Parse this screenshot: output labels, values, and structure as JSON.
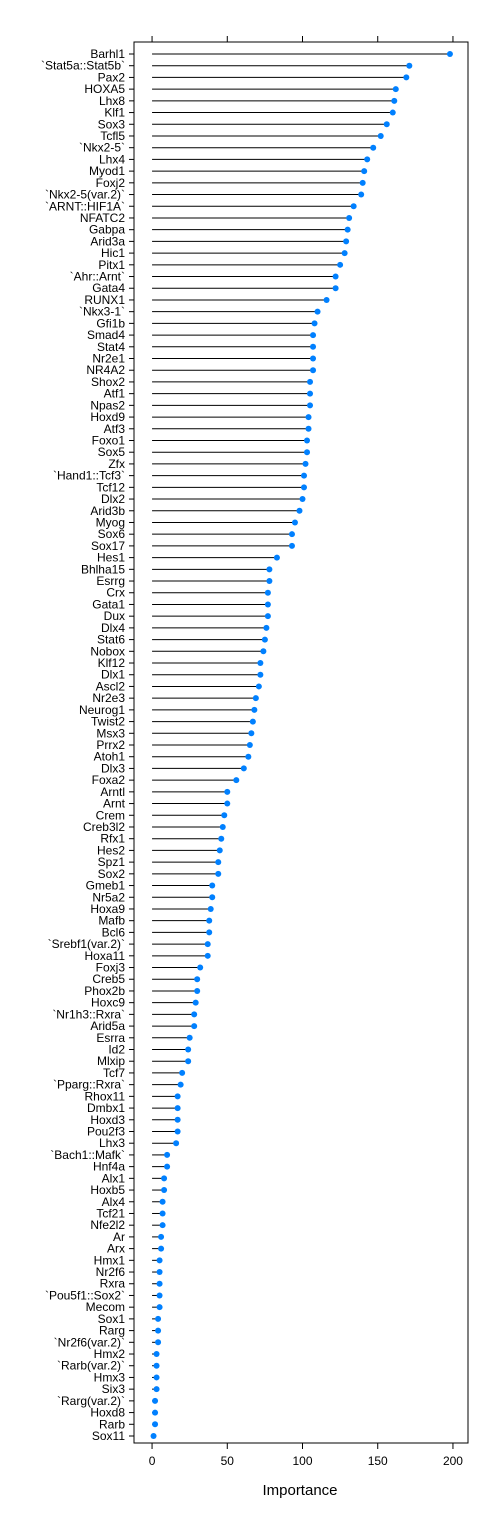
{
  "chart_data": {
    "type": "dot",
    "xlabel": "Importance",
    "xlim": [
      -12,
      210
    ],
    "xticks": [
      0,
      50,
      100,
      150,
      200
    ],
    "xtick_labels": [
      "0",
      "50",
      "100",
      "150",
      "200"
    ],
    "point_color": "#0080ff",
    "line_color": "#000000",
    "categories": [
      "Barhl1",
      "`Stat5a::Stat5b`",
      "Pax2",
      "HOXA5",
      "Lhx8",
      "Klf1",
      "Sox3",
      "Tcfl5",
      "`Nkx2-5`",
      "Lhx4",
      "Myod1",
      "Foxj2",
      "`Nkx2-5(var.2)`",
      "`ARNT::HIF1A`",
      "NFATC2",
      "Gabpa",
      "Arid3a",
      "Hic1",
      "Pitx1",
      "`Ahr::Arnt`",
      "Gata4",
      "RUNX1",
      "`Nkx3-1`",
      "Gfi1b",
      "Smad4",
      "Stat4",
      "Nr2e1",
      "NR4A2",
      "Shox2",
      "Atf1",
      "Npas2",
      "Hoxd9",
      "Atf3",
      "Foxo1",
      "Sox5",
      "Zfx",
      "`Hand1::Tcf3`",
      "Tcf12",
      "Dlx2",
      "Arid3b",
      "Myog",
      "Sox6",
      "Sox17",
      "Hes1",
      "Bhlha15",
      "Esrrg",
      "Crx",
      "Gata1",
      "Dux",
      "Dlx4",
      "Stat6",
      "Nobox",
      "Klf12",
      "Dlx1",
      "Ascl2",
      "Nr2e3",
      "Neurog1",
      "Twist2",
      "Msx3",
      "Prrx2",
      "Atoh1",
      "Dlx3",
      "Foxa2",
      "Arntl",
      "Arnt",
      "Crem",
      "Creb3l2",
      "Rfx1",
      "Hes2",
      "Spz1",
      "Sox2",
      "Gmeb1",
      "Nr5a2",
      "Hoxa9",
      "Mafb",
      "Bcl6",
      "`Srebf1(var.2)`",
      "Hoxa11",
      "Foxj3",
      "Creb5",
      "Phox2b",
      "Hoxc9",
      "`Nr1h3::Rxra`",
      "Arid5a",
      "Esrra",
      "Id2",
      "Mlxip",
      "Tcf7",
      "`Pparg::Rxra`",
      "Rhox11",
      "Dmbx1",
      "Hoxd3",
      "Pou2f3",
      "Lhx3",
      "`Bach1::Mafk`",
      "Hnf4a",
      "Alx1",
      "Hoxb5",
      "Alx4",
      "Tcf21",
      "Nfe2l2",
      "Ar",
      "Arx",
      "Hmx1",
      "Nr2f6",
      "Rxra",
      "`Pou5f1::Sox2`",
      "Mecom",
      "Sox1",
      "Rarg",
      "`Nr2f6(var.2)`",
      "Hmx2",
      "`Rarb(var.2)`",
      "Hmx3",
      "Six3",
      "`Rarg(var.2)`",
      "Hoxd8",
      "Rarb",
      "Sox11"
    ],
    "values": [
      198,
      171,
      169,
      162,
      161,
      160,
      156,
      152,
      147,
      143,
      141,
      140,
      139,
      134,
      131,
      130,
      129,
      128,
      125,
      122,
      122,
      116,
      110,
      108,
      107,
      107,
      107,
      107,
      105,
      105,
      105,
      104,
      104,
      103,
      103,
      102,
      101,
      101,
      100,
      98,
      95,
      93,
      93,
      83,
      78,
      78,
      77,
      77,
      77,
      76,
      75,
      74,
      72,
      72,
      71,
      69,
      68,
      67,
      66,
      65,
      64,
      61,
      56,
      50,
      50,
      48,
      47,
      46,
      45,
      44,
      44,
      40,
      40,
      39,
      38,
      38,
      37,
      37,
      32,
      30,
      30,
      29,
      28,
      28,
      25,
      24,
      24,
      20,
      19,
      17,
      17,
      17,
      17,
      16,
      10,
      10,
      8,
      8,
      7,
      7,
      7,
      6,
      6,
      5,
      5,
      5,
      5,
      5,
      4,
      4,
      4,
      3,
      3,
      3,
      3,
      2,
      2,
      2,
      1
    ]
  }
}
